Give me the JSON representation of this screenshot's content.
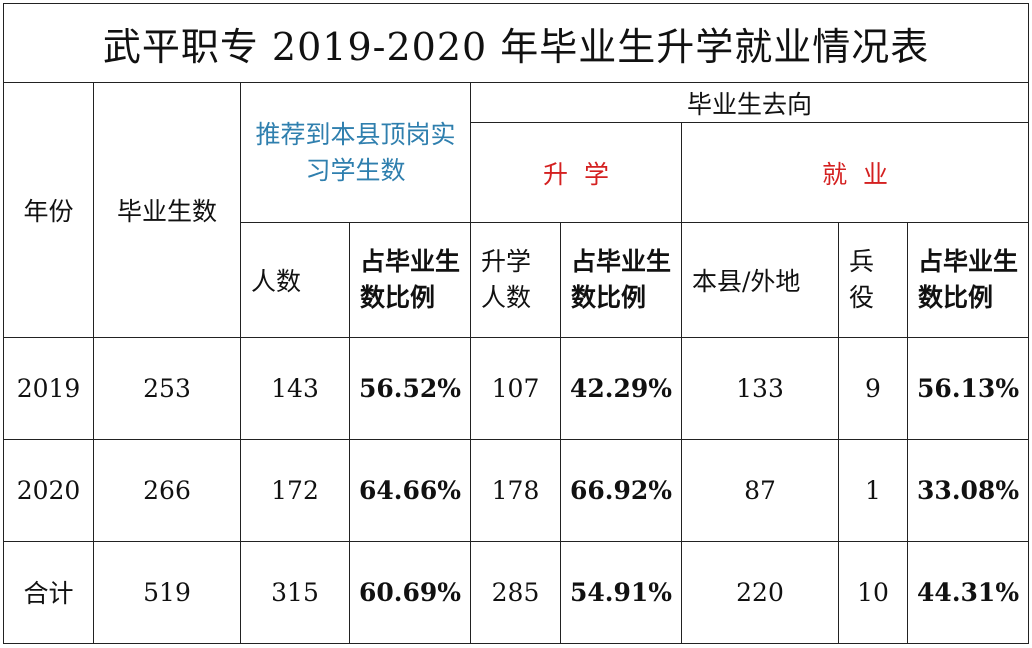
{
  "title": "武平职专 2019-2020 年毕业生升学就业情况表",
  "headers": {
    "year": "年份",
    "graduates": "毕业生数",
    "internship": "推荐到本县顶岗实习学生数",
    "destination": "毕业生去向",
    "further_study": "升  学",
    "employment": "就  业",
    "count": "人数",
    "ratio": "占毕业生数比例",
    "further_count": "升学人数",
    "local_other": "本县/外地",
    "military": "兵役"
  },
  "rows": [
    {
      "year": "2019",
      "graduates": "253",
      "intern_count": "143",
      "intern_ratio": "56.52%",
      "further_count": "107",
      "further_ratio": "42.29%",
      "local_other": "133",
      "military": "9",
      "emp_ratio": "56.13%"
    },
    {
      "year": "2020",
      "graduates": "266",
      "intern_count": "172",
      "intern_ratio": "64.66%",
      "further_count": "178",
      "further_ratio": "66.92%",
      "local_other": "87",
      "military": "1",
      "emp_ratio": "33.08%"
    },
    {
      "year": "合计",
      "graduates": "519",
      "intern_count": "315",
      "intern_ratio": "60.69%",
      "further_count": "285",
      "further_ratio": "54.91%",
      "local_other": "220",
      "military": "10",
      "emp_ratio": "44.31%"
    }
  ]
}
